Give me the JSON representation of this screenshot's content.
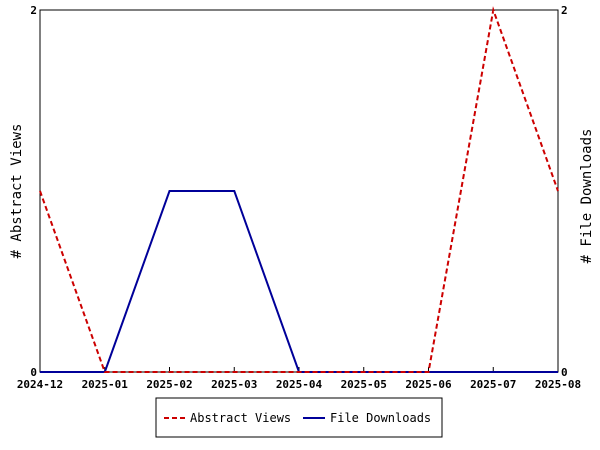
{
  "chart_data": {
    "type": "line",
    "categories": [
      "2024-12",
      "2025-01",
      "2025-02",
      "2025-03",
      "2025-04",
      "2025-05",
      "2025-06",
      "2025-07",
      "2025-08"
    ],
    "series": [
      {
        "name": "Abstract Views",
        "values": [
          1,
          0,
          0,
          0,
          0,
          0,
          0,
          2,
          1
        ],
        "color": "#cc0000",
        "style": "dashed",
        "axis": "left"
      },
      {
        "name": "File Downloads",
        "values": [
          0,
          0,
          1,
          1,
          0,
          0,
          0,
          0,
          0
        ],
        "color": "#000099",
        "style": "solid",
        "axis": "right"
      }
    ],
    "ylabel_left": "# Abstract Views",
    "ylabel_right": "# File Downloads",
    "ylim_left": [
      0,
      2
    ],
    "ylim_right": [
      0,
      2
    ],
    "yticks_left": [
      "0",
      "2"
    ],
    "yticks_right": [
      "0",
      "2"
    ],
    "grid": false,
    "legend_position": "bottom"
  }
}
